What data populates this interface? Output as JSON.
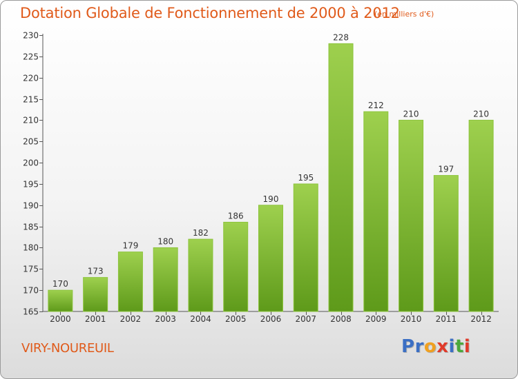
{
  "header": {
    "title": "Dotation Globale de Fonctionnement de 2000 à 2012",
    "subtitle": "(en milliers d'€)"
  },
  "footer": {
    "commune": "VIRY-NOUREUIL",
    "brand_letters": [
      "P",
      "r",
      "o",
      "x",
      "i",
      "t",
      "i"
    ],
    "brand_colors": [
      "#3b6fc4",
      "#3b6fc4",
      "#f0a020",
      "#e03a2a",
      "#3b6fc4",
      "#4aa83a",
      "#e03a2a"
    ]
  },
  "chart_data": {
    "type": "bar",
    "title": "Dotation Globale de Fonctionnement de 2000 à 2012",
    "subtitle": "(en milliers d'€)",
    "xlabel": "",
    "ylabel": "",
    "categories": [
      "2000",
      "2001",
      "2002",
      "2003",
      "2004",
      "2005",
      "2006",
      "2007",
      "2008",
      "2009",
      "2010",
      "2011",
      "2012"
    ],
    "values": [
      170,
      173,
      179,
      180,
      182,
      186,
      190,
      195,
      228,
      212,
      210,
      197,
      210
    ],
    "ylim": [
      165,
      230
    ],
    "yticks": [
      165,
      170,
      175,
      180,
      185,
      190,
      195,
      200,
      205,
      210,
      215,
      220,
      225,
      230
    ],
    "grid": false,
    "bar_color_top": "#9ed04e",
    "bar_color_bottom": "#5e9a1a",
    "text_color": "#e05a1a"
  }
}
